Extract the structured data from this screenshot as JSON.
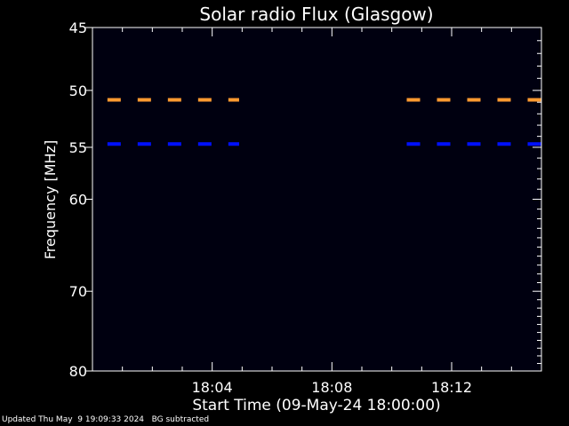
{
  "chart_data": {
    "type": "heatmap",
    "title": "Solar radio Flux (Glasgow)",
    "xlabel": "Start Time (09-May-24 18:00:00)",
    "ylabel": "Frequency [MHz]",
    "x_unit": "minutes after 18:00",
    "xlim": [
      0,
      15
    ],
    "ylim": [
      80,
      45
    ],
    "y_scale": "log",
    "x_ticks": [
      {
        "value": 4,
        "label": "18:04"
      },
      {
        "value": 8,
        "label": "18:08"
      },
      {
        "value": 12,
        "label": "18:12"
      }
    ],
    "y_ticks": [
      {
        "value": 45,
        "label": "45"
      },
      {
        "value": 50,
        "label": "50"
      },
      {
        "value": 55,
        "label": "55"
      },
      {
        "value": 60,
        "label": "60"
      },
      {
        "value": 70,
        "label": "70"
      },
      {
        "value": 80,
        "label": "80"
      }
    ],
    "bands": [
      {
        "frequency": 50.8,
        "color": "#ff9a30",
        "segments": [
          [
            0.5,
            4.9
          ],
          [
            10.5,
            15
          ]
        ]
      },
      {
        "frequency": 54.7,
        "color": "#0010ff",
        "segments": [
          [
            0.5,
            4.9
          ],
          [
            10.5,
            15
          ]
        ]
      }
    ],
    "background_color": "#000010",
    "grid": false,
    "legend": "none"
  },
  "footer": {
    "updated": "Updated Thu May  9 19:09:33 2024",
    "note": "BG subtracted"
  }
}
